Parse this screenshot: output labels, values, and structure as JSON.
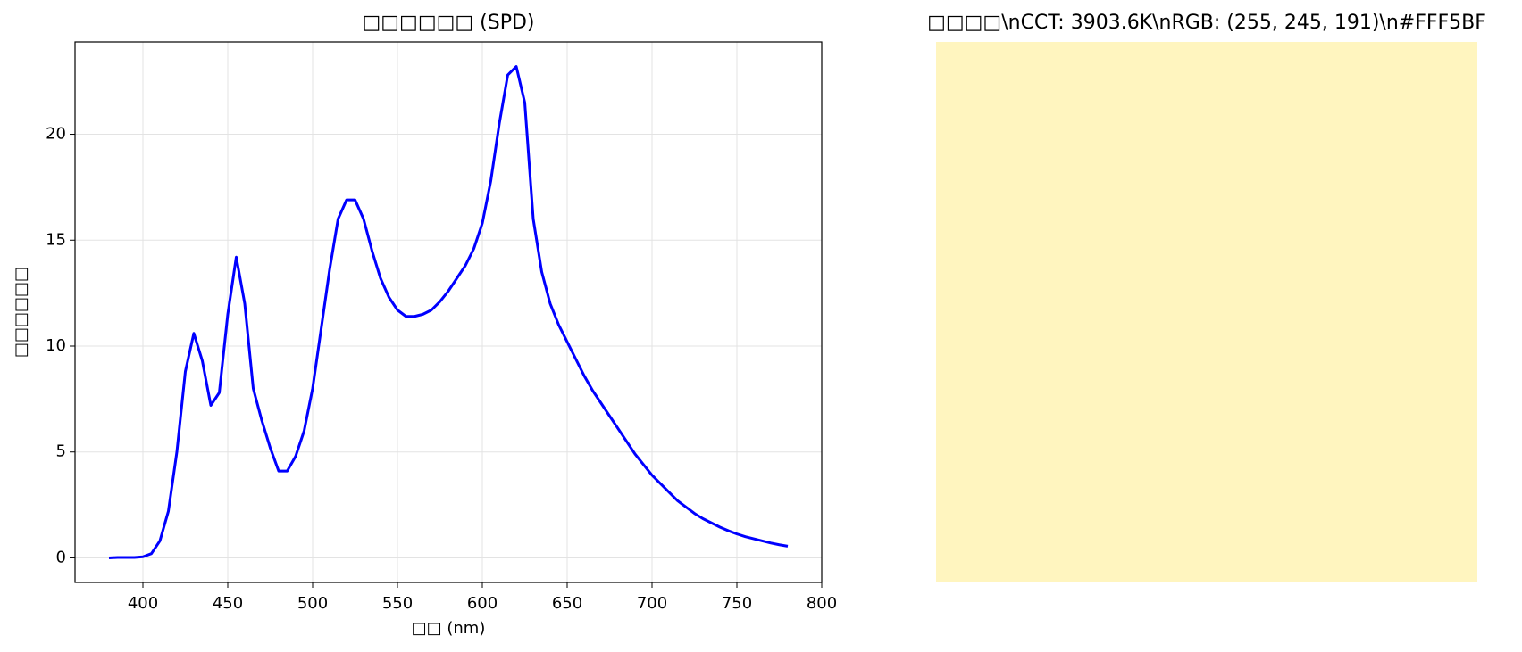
{
  "chart_data": [
    {
      "type": "line",
      "title": "□□□□□□ (SPD)",
      "x_label": "□□ (nm)",
      "y_label": "□□□□□□",
      "x": [
        380,
        385,
        390,
        395,
        400,
        405,
        410,
        415,
        420,
        425,
        430,
        435,
        440,
        445,
        450,
        455,
        460,
        465,
        470,
        475,
        480,
        485,
        490,
        495,
        500,
        505,
        510,
        515,
        520,
        525,
        530,
        535,
        540,
        545,
        550,
        555,
        560,
        565,
        570,
        575,
        580,
        585,
        590,
        595,
        600,
        605,
        610,
        615,
        620,
        625,
        630,
        635,
        640,
        645,
        650,
        655,
        660,
        665,
        670,
        675,
        680,
        685,
        690,
        695,
        700,
        705,
        710,
        715,
        720,
        725,
        730,
        735,
        740,
        745,
        750,
        755,
        760,
        765,
        770,
        775,
        780
      ],
      "series": [
        {
          "color": "#0000ff",
          "values": [
            0,
            0.02,
            0.02,
            0.02,
            0.05,
            0.2,
            0.8,
            2.2,
            5,
            8.8,
            10.6,
            9.3,
            7.2,
            7.8,
            11.5,
            14.2,
            12,
            8,
            6.5,
            5.2,
            4.1,
            4.1,
            4.8,
            6,
            8,
            10.8,
            13.6,
            16,
            16.9,
            16.9,
            16,
            14.5,
            13.2,
            12.3,
            11.7,
            11.4,
            11.4,
            11.5,
            11.7,
            12.1,
            12.6,
            13.2,
            13.8,
            14.6,
            15.8,
            17.8,
            20.5,
            22.8,
            23.2,
            21.5,
            16,
            13.5,
            12,
            11,
            10.2,
            9.4,
            8.6,
            7.9,
            7.3,
            6.7,
            6.1,
            5.5,
            4.9,
            4.4,
            3.9,
            3.5,
            3.1,
            2.7,
            2.4,
            2.1,
            1.85,
            1.65,
            1.45,
            1.28,
            1.13,
            1.0,
            0.9,
            0.8,
            0.7,
            0.62,
            0.55
          ]
        }
      ],
      "xlim": [
        360,
        800
      ],
      "xticks": [
        400,
        450,
        500,
        550,
        600,
        650,
        700,
        750,
        800
      ],
      "ylim": [
        -1.16,
        24.36
      ],
      "yticks": [
        0,
        5,
        10,
        15,
        20
      ],
      "grid": true
    },
    {
      "type": "image",
      "title": "□□□□\\nCCT: 3903.6K\\nRGB: (255, 245, 191)\\n#FFF5BF",
      "color": "#FFF5BF"
    }
  ]
}
